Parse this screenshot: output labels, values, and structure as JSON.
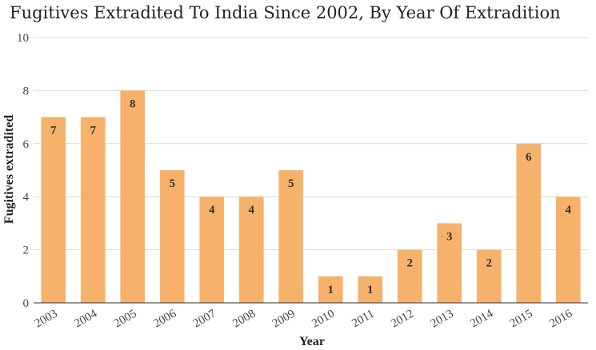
{
  "chart_data": {
    "type": "bar",
    "title": "Fugitives Extradited To India Since 2002, By Year Of Extradition",
    "xlabel": "Year",
    "ylabel": "Fugitives extradited",
    "categories": [
      "2003",
      "2004",
      "2005",
      "2006",
      "2007",
      "2008",
      "2009",
      "2010",
      "2011",
      "2012",
      "2013",
      "2014",
      "2015",
      "2016"
    ],
    "values": [
      7,
      7,
      8,
      5,
      4,
      4,
      5,
      1,
      1,
      2,
      3,
      2,
      6,
      4
    ],
    "ylim": [
      0,
      10
    ],
    "yticks": [
      "0",
      "2",
      "4",
      "6",
      "8",
      "10"
    ],
    "grid": true,
    "bar_color": "#f6b26b",
    "data_labels": true
  }
}
